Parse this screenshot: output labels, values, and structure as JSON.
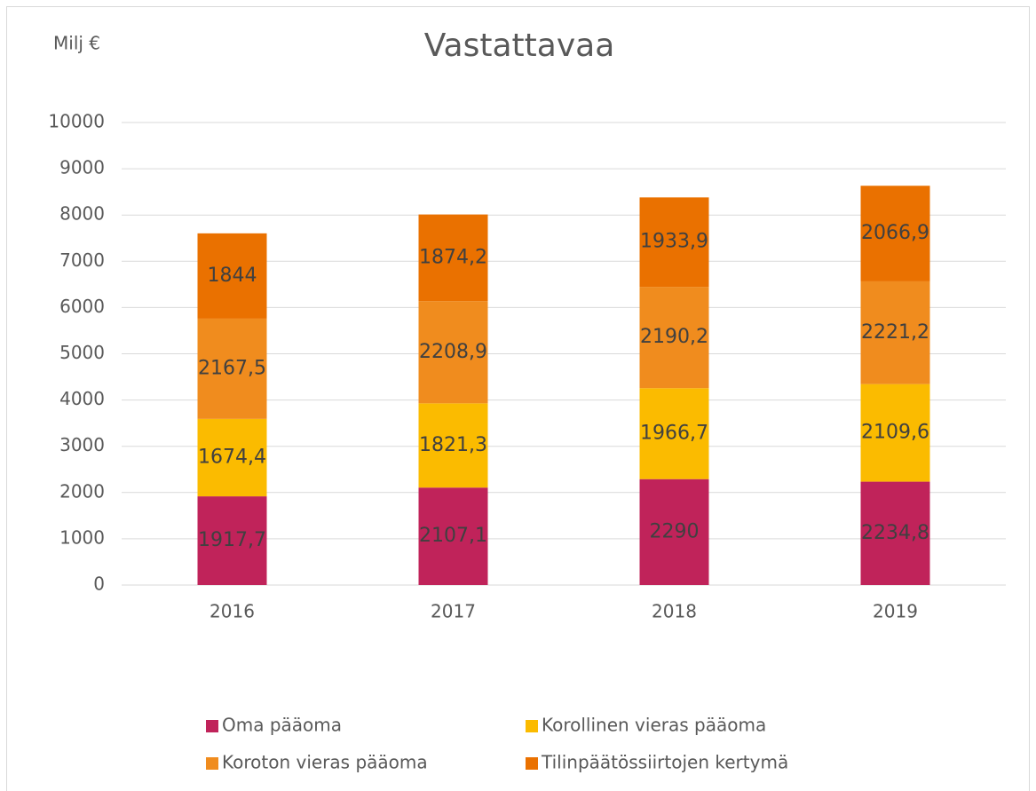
{
  "chart_data": {
    "type": "bar",
    "stacked": true,
    "title": "Vastattavaa",
    "y_label": "Milj €",
    "categories": [
      "2016",
      "2017",
      "2018",
      "2019"
    ],
    "series": [
      {
        "name": "Oma pääoma",
        "color": "#c0235a",
        "values": [
          1917.7,
          2107.1,
          2290,
          2234.8
        ],
        "value_labels": [
          "1917,7",
          "2107,1",
          "2290",
          "2234,8"
        ]
      },
      {
        "name": "Korollinen vieras pääoma",
        "color": "#fbbb00",
        "values": [
          1674.4,
          1821.3,
          1966.7,
          2109.6
        ],
        "value_labels": [
          "1674,4",
          "1821,3",
          "1966,7",
          "2109,6"
        ]
      },
      {
        "name": "Koroton vieras pääoma",
        "color": "#f08c1e",
        "values": [
          2167.5,
          2208.9,
          2190.2,
          2221.2
        ],
        "value_labels": [
          "2167,5",
          "2208,9",
          "2190,2",
          "2221,2"
        ]
      },
      {
        "name": "Tilinpäätössiirtojen kertymä",
        "color": "#ea7100",
        "values": [
          1844,
          1874.2,
          1933.9,
          2066.9
        ],
        "value_labels": [
          "1844",
          "1874,2",
          "1933,9",
          "2066,9"
        ]
      }
    ],
    "ylim": [
      0,
      10000
    ],
    "yticks": [
      0,
      1000,
      2000,
      3000,
      4000,
      5000,
      6000,
      7000,
      8000,
      9000,
      10000
    ],
    "grid": true,
    "legend": "bottom"
  }
}
